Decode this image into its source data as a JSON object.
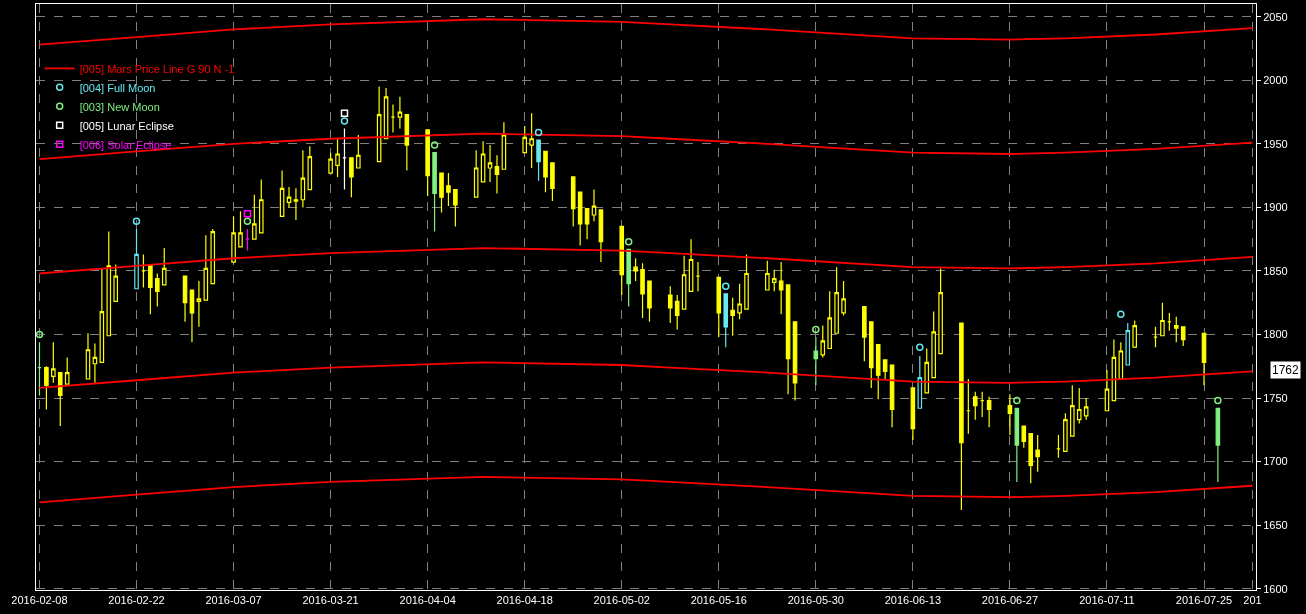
{
  "chart_data": {
    "type": "candlestick",
    "x": [
      "2016-02-08",
      "2016-02-09",
      "2016-02-10",
      "2016-02-11",
      "2016-02-12",
      "2016-02-15",
      "2016-02-16",
      "2016-02-17",
      "2016-02-18",
      "2016-02-19",
      "2016-02-22",
      "2016-02-23",
      "2016-02-24",
      "2016-02-25",
      "2016-02-26",
      "2016-02-29",
      "2016-03-01",
      "2016-03-02",
      "2016-03-03",
      "2016-03-04",
      "2016-03-07",
      "2016-03-08",
      "2016-03-09",
      "2016-03-10",
      "2016-03-11",
      "2016-03-14",
      "2016-03-15",
      "2016-03-16",
      "2016-03-17",
      "2016-03-18",
      "2016-03-21",
      "2016-03-22",
      "2016-03-23",
      "2016-03-24",
      "2016-03-25",
      "2016-03-28",
      "2016-03-29",
      "2016-03-30",
      "2016-03-31",
      "2016-04-01",
      "2016-04-04",
      "2016-04-05",
      "2016-04-06",
      "2016-04-07",
      "2016-04-08",
      "2016-04-11",
      "2016-04-12",
      "2016-04-13",
      "2016-04-14",
      "2016-04-15",
      "2016-04-18",
      "2016-04-19",
      "2016-04-20",
      "2016-04-21",
      "2016-04-22",
      "2016-04-25",
      "2016-04-26",
      "2016-04-27",
      "2016-04-28",
      "2016-04-29",
      "2016-05-02",
      "2016-05-03",
      "2016-05-04",
      "2016-05-05",
      "2016-05-06",
      "2016-05-09",
      "2016-05-10",
      "2016-05-11",
      "2016-05-12",
      "2016-05-13",
      "2016-05-16",
      "2016-05-17",
      "2016-05-18",
      "2016-05-19",
      "2016-05-20",
      "2016-05-23",
      "2016-05-24",
      "2016-05-25",
      "2016-05-26",
      "2016-05-27",
      "2016-05-30",
      "2016-05-31",
      "2016-06-01",
      "2016-06-02",
      "2016-06-03",
      "2016-06-06",
      "2016-06-07",
      "2016-06-08",
      "2016-06-09",
      "2016-06-10",
      "2016-06-13",
      "2016-06-14",
      "2016-06-15",
      "2016-06-16",
      "2016-06-17",
      "2016-06-20",
      "2016-06-21",
      "2016-06-22",
      "2016-06-23",
      "2016-06-24",
      "2016-06-27",
      "2016-06-28",
      "2016-06-29",
      "2016-06-30",
      "2016-07-01",
      "2016-07-04",
      "2016-07-05",
      "2016-07-06",
      "2016-07-07",
      "2016-07-08",
      "2016-07-11",
      "2016-07-12",
      "2016-07-13",
      "2016-07-14",
      "2016-07-15",
      "2016-07-18",
      "2016-07-19",
      "2016-07-20",
      "2016-07-21",
      "2016-07-22",
      "2016-07-25",
      "2016-07-27"
    ],
    "ohlc": [
      [
        1774,
        1794,
        1752,
        1774
      ],
      [
        1774,
        1775,
        1741,
        1760
      ],
      [
        1767,
        1794,
        1762,
        1773
      ],
      [
        1770,
        1770,
        1728,
        1752
      ],
      [
        1761,
        1782,
        1761,
        1770
      ],
      [
        1765,
        1801,
        1765,
        1788
      ],
      [
        1777,
        1793,
        1762,
        1782
      ],
      [
        1778,
        1852,
        1778,
        1818
      ],
      [
        1799,
        1881,
        1799,
        1854
      ],
      [
        1826,
        1855,
        1826,
        1846
      ],
      [
        1836,
        1883,
        1836,
        1863
      ],
      [
        1850,
        1863,
        1837,
        1850
      ],
      [
        1855,
        1855,
        1816,
        1837
      ],
      [
        1844,
        1848,
        1822,
        1834
      ],
      [
        1839,
        1868,
        1839,
        1852
      ],
      [
        1846,
        1846,
        1810,
        1825
      ],
      [
        1835,
        1835,
        1794,
        1817
      ],
      [
        1826,
        1842,
        1806,
        1828
      ],
      [
        1827,
        1878,
        1827,
        1852
      ],
      [
        1840,
        1883,
        1840,
        1881
      ],
      [
        1857,
        1893,
        1857,
        1880
      ],
      [
        1869,
        1897,
        1869,
        1880
      ],
      [
        1875,
        1883,
        1866,
        1875
      ],
      [
        1875,
        1910,
        1875,
        1887
      ],
      [
        1880,
        1922,
        1880,
        1906
      ],
      [
        1893,
        1929,
        1893,
        1915
      ],
      [
        1904,
        1916,
        1900,
        1908
      ],
      [
        1906,
        1915,
        1890,
        1905
      ],
      [
        1906,
        1945,
        1900,
        1923
      ],
      [
        1914,
        1948,
        1914,
        1940
      ],
      [
        1927,
        1943,
        1927,
        1938
      ],
      [
        1933,
        1954,
        1924,
        1942
      ],
      [
        1939,
        1962,
        1914,
        1939
      ],
      [
        1939,
        1939,
        1908,
        1924
      ],
      [
        1931,
        1957,
        1931,
        1941
      ],
      [
        1936,
        1995,
        1936,
        1973
      ],
      [
        1954,
        1994,
        1954,
        1987
      ],
      [
        1971,
        1981,
        1959,
        1971
      ],
      [
        1971,
        1987,
        1962,
        1975
      ],
      [
        1973,
        1973,
        1929,
        1949
      ],
      [
        1961,
        1961,
        1909,
        1925
      ],
      [
        1943,
        1943,
        1881,
        1911
      ],
      [
        1927,
        1927,
        1896,
        1908
      ],
      [
        1917,
        1927,
        1901,
        1912
      ],
      [
        1914,
        1914,
        1885,
        1902
      ],
      [
        1908,
        1945,
        1908,
        1931
      ],
      [
        1920,
        1952,
        1920,
        1942
      ],
      [
        1931,
        1949,
        1920,
        1935
      ],
      [
        1932,
        1941,
        1911,
        1926
      ],
      [
        1930,
        1967,
        1930,
        1957
      ],
      [
        1943,
        1964,
        1943,
        1955
      ],
      [
        1949,
        1974,
        1931,
        1954
      ],
      [
        1953,
        1953,
        1921,
        1936
      ],
      [
        1944,
        1944,
        1912,
        1924
      ],
      [
        1935,
        1935,
        1905,
        1915
      ],
      [
        1924,
        1924,
        1885,
        1899
      ],
      [
        1912,
        1912,
        1870,
        1887
      ],
      [
        1899,
        1899,
        1875,
        1887
      ],
      [
        1894,
        1914,
        1889,
        1901
      ],
      [
        1898,
        1898,
        1857,
        1873
      ],
      [
        1885,
        1885,
        1831,
        1847
      ],
      [
        1867,
        1867,
        1822,
        1840
      ],
      [
        1853,
        1860,
        1842,
        1850
      ],
      [
        1851,
        1856,
        1813,
        1832
      ],
      [
        1842,
        1842,
        1810,
        1821
      ],
      [
        1831,
        1838,
        1809,
        1821
      ],
      [
        1826,
        1831,
        1804,
        1815
      ],
      [
        1820,
        1862,
        1820,
        1847
      ],
      [
        1834,
        1875,
        1834,
        1859
      ],
      [
        1846,
        1857,
        1834,
        1846
      ],
      [
        1845,
        1845,
        1798,
        1817
      ],
      [
        1832,
        1832,
        1790,
        1806
      ],
      [
        1819,
        1829,
        1799,
        1815
      ],
      [
        1817,
        1840,
        1812,
        1824
      ],
      [
        1820,
        1863,
        1820,
        1848
      ],
      [
        1835,
        1858,
        1835,
        1848
      ],
      [
        1841,
        1851,
        1834,
        1844
      ],
      [
        1842,
        1857,
        1816,
        1835
      ],
      [
        1839,
        1839,
        1753,
        1781
      ],
      [
        1810,
        1810,
        1748,
        1762
      ],
      [
        1787,
        1798,
        1760,
        1781
      ],
      [
        1784,
        1807,
        1782,
        1795
      ],
      [
        1789,
        1834,
        1789,
        1813
      ],
      [
        1801,
        1853,
        1801,
        1833
      ],
      [
        1817,
        1842,
        1815,
        1828
      ],
      [
        1822,
        1822,
        1779,
        1798
      ],
      [
        1810,
        1810,
        1758,
        1774
      ],
      [
        1792,
        1792,
        1749,
        1768
      ],
      [
        1780,
        1780,
        1765,
        1771
      ],
      [
        1776,
        1776,
        1727,
        1741
      ],
      [
        1758,
        1758,
        1717,
        1726
      ],
      [
        1742,
        1783,
        1742,
        1766
      ],
      [
        1754,
        1789,
        1754,
        1778
      ],
      [
        1766,
        1818,
        1766,
        1802
      ],
      [
        1785,
        1852,
        1785,
        1833
      ],
      [
        1809,
        1809,
        1662,
        1715
      ],
      [
        1740,
        1765,
        1722,
        1740
      ],
      [
        1751,
        1755,
        1733,
        1744
      ],
      [
        1748,
        1755,
        1735,
        1748
      ],
      [
        1748,
        1751,
        1727,
        1741
      ],
      [
        1744,
        1753,
        1721,
        1738
      ],
      [
        1742,
        1742,
        1684,
        1713
      ],
      [
        1728,
        1728,
        1711,
        1716
      ],
      [
        1722,
        1722,
        1683,
        1697
      ],
      [
        1709,
        1721,
        1692,
        1704
      ],
      [
        1710,
        1721,
        1703,
        1710
      ],
      [
        1708,
        1738,
        1708,
        1733
      ],
      [
        1720,
        1760,
        1720,
        1744
      ],
      [
        1733,
        1758,
        1730,
        1741
      ],
      [
        1736,
        1750,
        1733,
        1743
      ],
      [
        1740,
        1772,
        1740,
        1757
      ],
      [
        1748,
        1796,
        1748,
        1782
      ],
      [
        1765,
        1794,
        1765,
        1787
      ],
      [
        1776,
        1809,
        1776,
        1803
      ],
      [
        1790,
        1811,
        1790,
        1807
      ],
      [
        1798,
        1806,
        1790,
        1798
      ],
      [
        1799,
        1825,
        1799,
        1811
      ],
      [
        1810,
        1817,
        1803,
        1810
      ],
      [
        1807,
        1814,
        1794,
        1805
      ],
      [
        1806,
        1806,
        1791,
        1796
      ],
      [
        1801,
        1801,
        1760,
        1778
      ],
      [
        1742,
        1742,
        1684,
        1713
      ]
    ],
    "colors": [
      "#80f080",
      "#ffff00",
      "#ffff00",
      "#ffff00",
      "#ffff00",
      "#ffff00",
      "#ffff00",
      "#ffff00",
      "#ffff00",
      "#ffff00",
      "#66e8f0",
      "#ffff00",
      "#ffff00",
      "#ffff00",
      "#ffff00",
      "#ffff00",
      "#ffff00",
      "#ffff00",
      "#ffff00",
      "#ffff00",
      "#ffff00",
      "#ffff00",
      "#ff00ff",
      "#ffff00",
      "#ffff00",
      "#ffff00",
      "#ffff00",
      "#ffff00",
      "#ffff00",
      "#ffff00",
      "#ffff00",
      "#ffff00",
      "#ffffff",
      "#ffff00",
      "#ffff00",
      "#ffff00",
      "#ffff00",
      "#ffff00",
      "#ffff00",
      "#ffff00",
      "#ffff00",
      "#80f080",
      "#ffff00",
      "#ffff00",
      "#ffff00",
      "#ffff00",
      "#ffff00",
      "#ffff00",
      "#ffff00",
      "#ffff00",
      "#ffff00",
      "#ffff00",
      "#66e8f0",
      "#ffff00",
      "#ffff00",
      "#ffff00",
      "#ffff00",
      "#ffff00",
      "#ffff00",
      "#ffff00",
      "#ffff00",
      "#80f080",
      "#ffff00",
      "#ffff00",
      "#ffff00",
      "#ffff00",
      "#ffff00",
      "#ffff00",
      "#ffff00",
      "#ffff00",
      "#ffff00",
      "#66e8f0",
      "#ffff00",
      "#ffff00",
      "#ffff00",
      "#ffff00",
      "#ffff00",
      "#ffff00",
      "#ffff00",
      "#ffff00",
      "#80f080",
      "#ffff00",
      "#ffff00",
      "#ffff00",
      "#ffff00",
      "#ffff00",
      "#ffff00",
      "#ffff00",
      "#ffff00",
      "#ffff00",
      "#ffff00",
      "#66e8f0",
      "#ffff00",
      "#ffff00",
      "#ffff00",
      "#ffff00",
      "#ffff00",
      "#ffff00",
      "#ffff00",
      "#ffff00",
      "#ffff00",
      "#80f080",
      "#ffff00",
      "#ffff00",
      "#ffff00",
      "#ffff00",
      "#ffff00",
      "#ffff00",
      "#ffff00",
      "#ffff00",
      "#ffff00",
      "#ffff00",
      "#ffff00",
      "#66e8f0",
      "#ffff00",
      "#ffff00",
      "#ffff00",
      "#ffff00",
      "#ffff00",
      "#ffff00",
      "#ffff00",
      "#80f080"
    ],
    "series": [
      {
        "type": "line",
        "name": "[005] Mars Price Line G 90 N -1",
        "color": "#ff0000",
        "x": [
          "2016-02-08",
          "2016-02-22",
          "2016-03-07",
          "2016-03-21",
          "2016-04-12",
          "2016-05-02",
          "2016-05-09",
          "2016-05-23",
          "2016-06-13",
          "2016-06-27",
          "2016-07-05",
          "2016-07-18",
          "2016-08-01"
        ],
        "values": [
          2028,
          2034,
          2040,
          2044,
          2048,
          2046,
          2044,
          2040,
          2033,
          2032,
          2033,
          2036,
          2041
        ]
      },
      {
        "type": "line",
        "color": "#ff0000",
        "x": [
          "2016-02-08",
          "2016-02-22",
          "2016-03-07",
          "2016-03-21",
          "2016-04-12",
          "2016-05-02",
          "2016-05-09",
          "2016-05-23",
          "2016-06-13",
          "2016-06-27",
          "2016-07-05",
          "2016-07-18",
          "2016-08-01"
        ],
        "values": [
          1938,
          1944,
          1950,
          1954,
          1958,
          1956,
          1954,
          1950,
          1943,
          1942,
          1943,
          1946,
          1951
        ]
      },
      {
        "type": "line",
        "color": "#ff0000",
        "x": [
          "2016-02-08",
          "2016-02-22",
          "2016-03-07",
          "2016-03-21",
          "2016-04-12",
          "2016-05-02",
          "2016-05-09",
          "2016-05-23",
          "2016-06-13",
          "2016-06-27",
          "2016-07-05",
          "2016-07-18",
          "2016-08-01"
        ],
        "values": [
          1848,
          1854,
          1860,
          1864,
          1868,
          1866,
          1864,
          1860,
          1853,
          1852,
          1853,
          1856,
          1861
        ]
      },
      {
        "type": "line",
        "color": "#ff0000",
        "x": [
          "2016-02-08",
          "2016-02-22",
          "2016-03-07",
          "2016-03-21",
          "2016-04-12",
          "2016-05-02",
          "2016-05-09",
          "2016-05-23",
          "2016-06-13",
          "2016-06-27",
          "2016-07-05",
          "2016-07-18",
          "2016-08-01"
        ],
        "values": [
          1758,
          1764,
          1770,
          1774,
          1778,
          1776,
          1774,
          1770,
          1763,
          1762,
          1763,
          1766,
          1771
        ]
      },
      {
        "type": "line",
        "color": "#ff0000",
        "x": [
          "2016-02-08",
          "2016-02-22",
          "2016-03-07",
          "2016-03-21",
          "2016-04-12",
          "2016-05-02",
          "2016-05-09",
          "2016-05-23",
          "2016-06-13",
          "2016-06-27",
          "2016-07-05",
          "2016-07-18",
          "2016-08-01"
        ],
        "values": [
          1668,
          1674,
          1680,
          1684,
          1688,
          1686,
          1684,
          1680,
          1673,
          1672,
          1673,
          1676,
          1681
        ]
      },
      {
        "type": "scatter",
        "name": "[004] Full Moon",
        "color": "#66e8f0",
        "marker": "circle",
        "x": [
          "2016-02-22",
          "2016-03-23",
          "2016-04-20",
          "2016-05-17",
          "2016-06-14",
          "2016-07-13"
        ],
        "values": [
          1889,
          1968,
          1959,
          1838,
          1790,
          1816
        ]
      },
      {
        "type": "scatter",
        "name": "[003] New Moon",
        "color": "#80f080",
        "marker": "circle",
        "x": [
          "2016-02-08",
          "2016-03-09",
          "2016-04-05",
          "2016-05-03",
          "2016-05-30",
          "2016-06-28",
          "2016-07-27"
        ],
        "values": [
          1800,
          1889,
          1949,
          1873,
          1804,
          1748,
          1748
        ]
      },
      {
        "type": "scatter",
        "name": "[005] Lunar Eclipse",
        "color": "#ffffff",
        "marker": "square",
        "x": [
          "2016-03-23"
        ],
        "values": [
          1974
        ]
      },
      {
        "type": "scatter",
        "name": "[006] Solar Eclipse",
        "color": "#ff00ff",
        "marker": "square",
        "x": [
          "2016-03-09"
        ],
        "values": [
          1895
        ]
      }
    ],
    "xlim": [
      "2016-02-07T12:00",
      "2016-08-01T12:00"
    ],
    "xticks": [
      "2016-02-08",
      "2016-02-22",
      "2016-03-07",
      "2016-03-21",
      "2016-04-04",
      "2016-04-18",
      "2016-05-02",
      "2016-05-16",
      "2016-05-30",
      "2016-06-13",
      "2016-06-27",
      "2016-07-11",
      "2016-07-25",
      {
        "value": "2016-08-01",
        "label": "201"
      }
    ],
    "ylim": [
      1599,
      2060
    ],
    "yticks": [
      1600,
      1650,
      1700,
      1750,
      1800,
      1850,
      1900,
      1950,
      2000,
      2050
    ],
    "grid": true,
    "legend": "top left",
    "annotations": [
      "1762"
    ]
  }
}
